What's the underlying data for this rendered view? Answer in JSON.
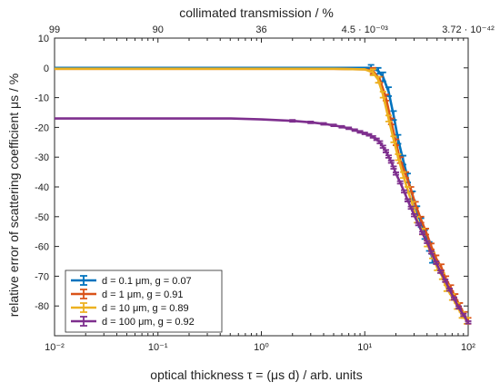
{
  "chart_data": {
    "type": "line",
    "xscale": "log",
    "xlim": [
      0.01,
      100
    ],
    "ylim": [
      -90,
      10
    ],
    "xlabel": "optical thickness τ = (μs d) / arb. units",
    "ylabel": "relative error of scattering coefficient μs / %",
    "x2label": "collimated transmission / %",
    "grid": false,
    "legend": "bottom-left",
    "xticks": [
      {
        "value": 0.01,
        "label": "10⁻²"
      },
      {
        "value": 0.1,
        "label": "10⁻¹"
      },
      {
        "value": 1,
        "label": "10⁰"
      },
      {
        "value": 10,
        "label": "10¹"
      },
      {
        "value": 100,
        "label": "10²"
      }
    ],
    "yticks": [
      10,
      0,
      -10,
      -20,
      -30,
      -40,
      -50,
      -60,
      -70,
      -80
    ],
    "x2ticks": [
      {
        "value": 0.01,
        "label": "99"
      },
      {
        "value": 0.1,
        "label": "90"
      },
      {
        "value": 1,
        "label": "36"
      },
      {
        "value": 10,
        "label": "4.5 · 10⁻⁰³"
      },
      {
        "value": 100,
        "label": "3.72 · 10⁻⁴²"
      }
    ],
    "series": [
      {
        "name": "d = 0.1 μm, g = 0.07",
        "color": "#0072bd",
        "x": [
          0.01,
          0.1,
          1,
          5,
          10,
          11.5,
          13.5,
          15,
          17,
          19,
          21,
          23.5,
          26,
          29,
          32,
          35,
          38,
          42,
          45
        ],
        "y": [
          0,
          0,
          0,
          0,
          0,
          0,
          -1,
          -3,
          -8,
          -16,
          -24,
          -31,
          -37,
          -43,
          -48,
          -52,
          -56,
          -60,
          -64
        ],
        "err": [
          0,
          0,
          0,
          0,
          0,
          1,
          1,
          1.5,
          1.5,
          1.5,
          1.5,
          1.5,
          1.5,
          1.5,
          1.5,
          1.5,
          1.5,
          1.5,
          1.5
        ]
      },
      {
        "name": "d = 1 μm, g = 0.91",
        "color": "#d95319",
        "x": [
          0.01,
          0.1,
          1,
          5,
          10,
          12,
          14,
          16,
          18,
          20,
          22,
          25,
          28,
          31,
          35,
          39,
          44,
          49,
          55,
          61,
          68,
          75,
          83,
          92,
          100
        ],
        "y": [
          -0.3,
          -0.3,
          -0.3,
          -0.3,
          -0.5,
          -1,
          -4,
          -10,
          -18,
          -25,
          -31,
          -36,
          -41,
          -46,
          -51,
          -55,
          -60,
          -64,
          -67,
          -71,
          -74,
          -77,
          -80,
          -83,
          -85
        ],
        "err": [
          0,
          0,
          0,
          0,
          0,
          1,
          1,
          1,
          1,
          1,
          1,
          1,
          1,
          1,
          1,
          1,
          1,
          1,
          1,
          1,
          1,
          1,
          1,
          1,
          1
        ]
      },
      {
        "name": "d = 10 μm, g = 0.89",
        "color": "#edb120",
        "x": [
          0.01,
          0.1,
          1,
          5,
          10,
          12,
          13.5,
          15,
          17,
          19,
          21,
          23.5,
          26,
          29,
          32,
          36,
          40,
          45,
          50,
          56,
          62,
          70,
          78,
          87,
          97
        ],
        "y": [
          -0.3,
          -0.3,
          -0.3,
          -0.3,
          -0.5,
          -1.5,
          -4,
          -9,
          -17,
          -24,
          -30,
          -36,
          -41,
          -46,
          -51,
          -55,
          -59,
          -63,
          -67,
          -70,
          -74,
          -77,
          -80,
          -83,
          -85
        ],
        "err": [
          0,
          0,
          0,
          0,
          0,
          1,
          1,
          1,
          1,
          1,
          1,
          1,
          1,
          1,
          1,
          1,
          1,
          1,
          1,
          1,
          1,
          1,
          1,
          1,
          1
        ]
      },
      {
        "name": "d = 100 μm, g = 0.92",
        "color": "#7e2f8e",
        "x": [
          0.01,
          0.1,
          0.5,
          1,
          2,
          3,
          4,
          5,
          6,
          7,
          8,
          9,
          10,
          11,
          12,
          13,
          14,
          15,
          16,
          17,
          18,
          19,
          20,
          22,
          24,
          26,
          28,
          30,
          33,
          36,
          40,
          44,
          49,
          54,
          60,
          66,
          73,
          81,
          90,
          100
        ],
        "y": [
          -17,
          -17,
          -17,
          -17.3,
          -17.8,
          -18.3,
          -18.8,
          -19.3,
          -19.8,
          -20.3,
          -20.9,
          -21.5,
          -22,
          -22.5,
          -23.2,
          -24,
          -25,
          -26.5,
          -28,
          -29.8,
          -31.5,
          -33.5,
          -35.5,
          -38.5,
          -41.5,
          -44.5,
          -47,
          -49.5,
          -52.5,
          -55.5,
          -58.5,
          -62,
          -65.5,
          -68.5,
          -71.5,
          -74.5,
          -77.5,
          -80.5,
          -83,
          -85.5
        ],
        "err": [
          0,
          0,
          0,
          0,
          0.3,
          0.3,
          0.3,
          0.3,
          0.3,
          0.3,
          0.3,
          0.3,
          0.3,
          0.3,
          0.3,
          0.3,
          0.4,
          0.4,
          0.4,
          0.4,
          0.4,
          0.4,
          0.4,
          0.4,
          0.4,
          0.4,
          0.4,
          0.4,
          0.4,
          0.4,
          0.4,
          0.4,
          0.4,
          0.4,
          0.4,
          0.4,
          0.4,
          0.4,
          0.4,
          0.4
        ]
      }
    ]
  }
}
